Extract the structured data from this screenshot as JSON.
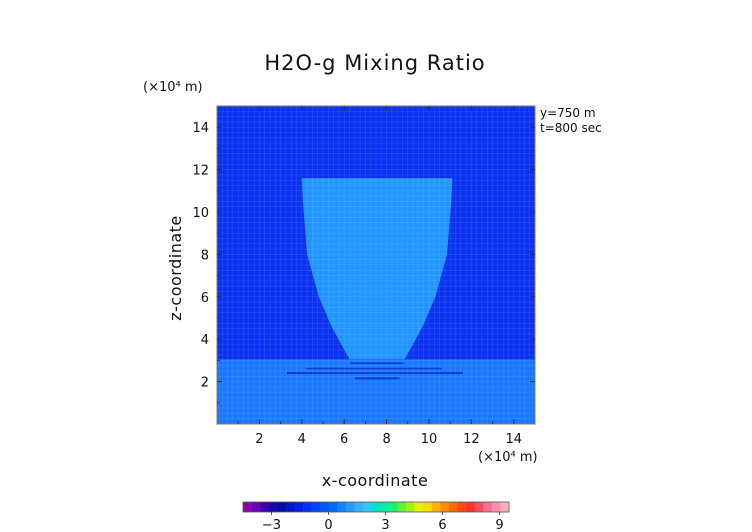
{
  "chart_data": {
    "type": "heatmap",
    "title": "H2O-g Mixing Ratio",
    "xlabel": "x-coordinate",
    "ylabel": "z-coordinate",
    "x_unit": "(×10⁴ m)",
    "y_unit": "(×10⁴ m)",
    "xlim": [
      0,
      15
    ],
    "ylim": [
      0,
      15
    ],
    "xticks": [
      2,
      4,
      6,
      8,
      10,
      12,
      14
    ],
    "yticks": [
      2,
      4,
      6,
      8,
      10,
      12,
      14
    ],
    "annotations": [
      "y=750  m",
      "t=800  sec"
    ],
    "colorbar": {
      "ticks": [
        -3,
        0,
        3,
        6,
        9
      ],
      "range": [
        -4.5,
        9.5
      ],
      "colors": [
        "#8a00a8",
        "#6e00b6",
        "#3a00b0",
        "#1808a8",
        "#000ca8",
        "#0016c0",
        "#0022dc",
        "#0032f0",
        "#0044ff",
        "#0058ff",
        "#006cff",
        "#1284ff",
        "#2a9aff",
        "#3cb0ff",
        "#2cc8f0",
        "#00e0d0",
        "#00f0a0",
        "#20f070",
        "#60f040",
        "#a8f010",
        "#e8f000",
        "#ffd800",
        "#ffb000",
        "#ff8c00",
        "#ff6a00",
        "#ff4a10",
        "#ff3030",
        "#ff4c60",
        "#ff7090",
        "#ff90a8",
        "#ffb0bc"
      ]
    },
    "regions": [
      {
        "name": "upper background",
        "value": 0
      },
      {
        "name": "lower layer (z below ~3)",
        "value": 1.5
      },
      {
        "name": "vase-shaped plume",
        "value": 1.5
      }
    ],
    "plume_outline": [
      [
        4.0,
        11.6
      ],
      [
        11.1,
        11.6
      ],
      [
        11.05,
        10.5
      ],
      [
        10.85,
        8.0
      ],
      [
        10.3,
        6.0
      ],
      [
        9.7,
        4.6
      ],
      [
        9.1,
        3.5
      ],
      [
        8.85,
        3.05
      ],
      [
        6.25,
        3.05
      ],
      [
        6.0,
        3.5
      ],
      [
        5.4,
        4.6
      ],
      [
        4.8,
        6.0
      ],
      [
        4.25,
        8.0
      ],
      [
        4.05,
        10.5
      ]
    ],
    "colors": {
      "background": "#0a32f0",
      "grid": "#3c64f0",
      "lower_layer": "#1a78ff",
      "plume": "#2296ff",
      "border": "#7a7a7a"
    }
  }
}
